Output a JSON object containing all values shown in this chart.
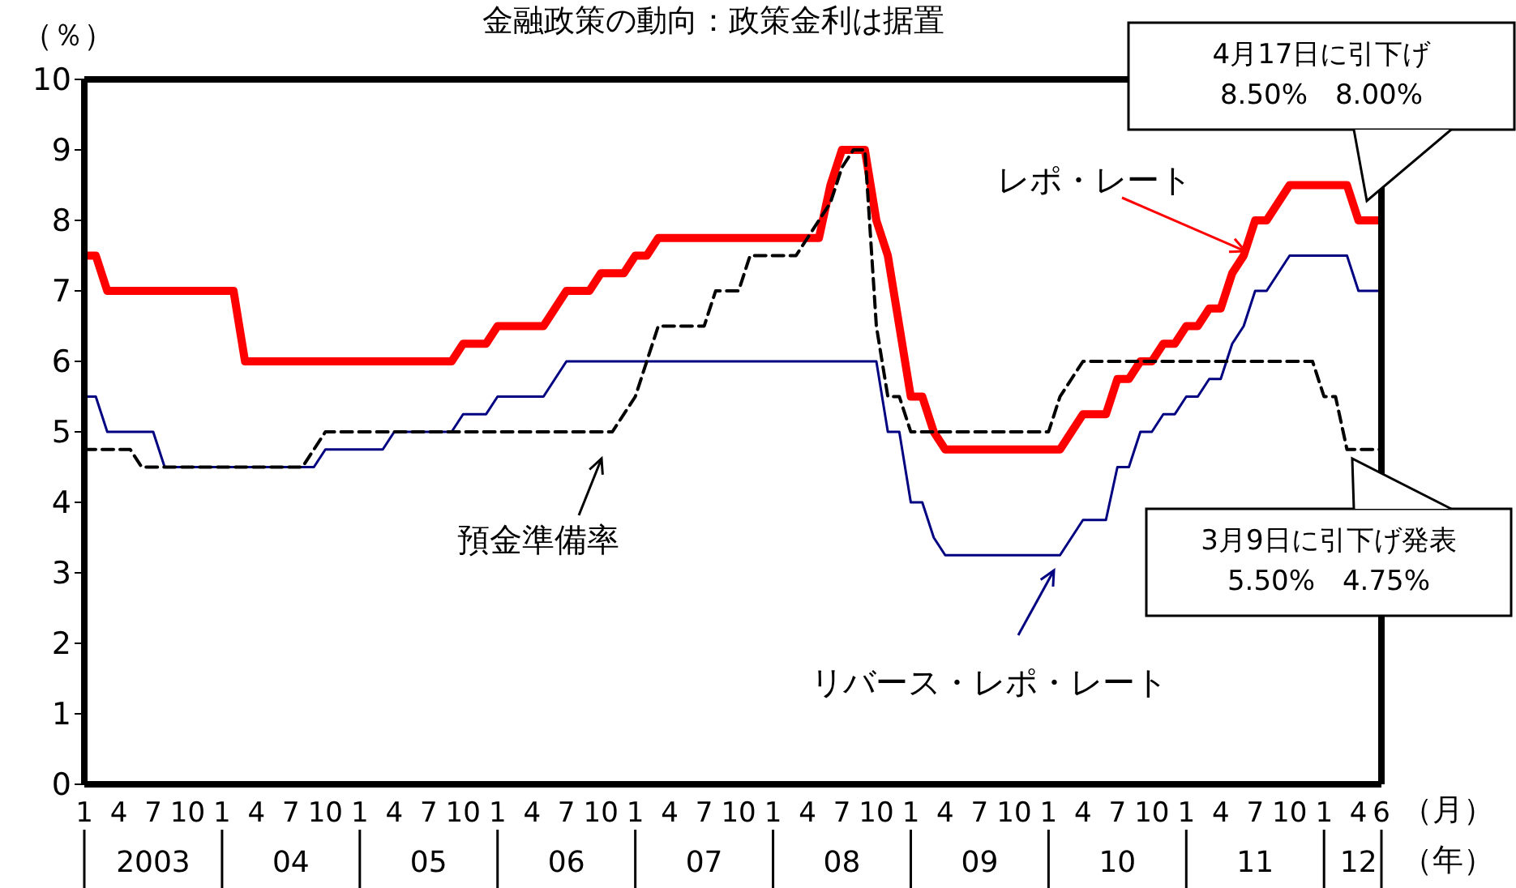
{
  "chart_data": {
    "type": "line",
    "title": "金融政策の動向：政策金利は据置",
    "ylabel": "（％）",
    "xlabel": "（月）",
    "x2label": "（年）",
    "x": [
      "2003-01",
      "2003-02",
      "2003-03",
      "2003-04",
      "2003-05",
      "2003-06",
      "2003-07",
      "2003-08",
      "2003-09",
      "2003-10",
      "2003-11",
      "2003-12",
      "2004-01",
      "2004-02",
      "2004-03",
      "2004-04",
      "2004-05",
      "2004-06",
      "2004-07",
      "2004-08",
      "2004-09",
      "2004-10",
      "2004-11",
      "2004-12",
      "2005-01",
      "2005-02",
      "2005-03",
      "2005-04",
      "2005-05",
      "2005-06",
      "2005-07",
      "2005-08",
      "2005-09",
      "2005-10",
      "2005-11",
      "2005-12",
      "2006-01",
      "2006-02",
      "2006-03",
      "2006-04",
      "2006-05",
      "2006-06",
      "2006-07",
      "2006-08",
      "2006-09",
      "2006-10",
      "2006-11",
      "2006-12",
      "2007-01",
      "2007-02",
      "2007-03",
      "2007-04",
      "2007-05",
      "2007-06",
      "2007-07",
      "2007-08",
      "2007-09",
      "2007-10",
      "2007-11",
      "2007-12",
      "2008-01",
      "2008-02",
      "2008-03",
      "2008-04",
      "2008-05",
      "2008-06",
      "2008-07",
      "2008-08",
      "2008-09",
      "2008-10",
      "2008-11",
      "2008-12",
      "2009-01",
      "2009-02",
      "2009-03",
      "2009-04",
      "2009-05",
      "2009-06",
      "2009-07",
      "2009-08",
      "2009-09",
      "2009-10",
      "2009-11",
      "2009-12",
      "2010-01",
      "2010-02",
      "2010-03",
      "2010-04",
      "2010-05",
      "2010-06",
      "2010-07",
      "2010-08",
      "2010-09",
      "2010-10",
      "2010-11",
      "2010-12",
      "2011-01",
      "2011-02",
      "2011-03",
      "2011-04",
      "2011-05",
      "2011-06",
      "2011-07",
      "2011-08",
      "2011-09",
      "2011-10",
      "2011-11",
      "2011-12",
      "2012-01",
      "2012-02",
      "2012-03",
      "2012-04",
      "2012-05",
      "2012-06"
    ],
    "series": [
      {
        "name": "レポ・レート",
        "color": "#ff0000",
        "line_style": "solid",
        "values": [
          7.5,
          7.5,
          7,
          7,
          7,
          7,
          7,
          7,
          7,
          7,
          7,
          7,
          7,
          7,
          6,
          6,
          6,
          6,
          6,
          6,
          6,
          6,
          6,
          6,
          6,
          6,
          6,
          6,
          6,
          6,
          6,
          6,
          6,
          6.25,
          6.25,
          6.25,
          6.5,
          6.5,
          6.5,
          6.5,
          6.5,
          6.75,
          7,
          7,
          7,
          7.25,
          7.25,
          7.25,
          7.5,
          7.5,
          7.75,
          7.75,
          7.75,
          7.75,
          7.75,
          7.75,
          7.75,
          7.75,
          7.75,
          7.75,
          7.75,
          7.75,
          7.75,
          7.75,
          7.75,
          8.5,
          9,
          9,
          9,
          8,
          7.5,
          6.5,
          5.5,
          5.5,
          5,
          4.75,
          4.75,
          4.75,
          4.75,
          4.75,
          4.75,
          4.75,
          4.75,
          4.75,
          4.75,
          4.75,
          5,
          5.25,
          5.25,
          5.25,
          5.75,
          5.75,
          6,
          6,
          6.25,
          6.25,
          6.5,
          6.5,
          6.75,
          6.75,
          7.25,
          7.5,
          8,
          8,
          8.25,
          8.5,
          8.5,
          8.5,
          8.5,
          8.5,
          8.5,
          8,
          8,
          8
        ]
      },
      {
        "name": "リバース・レポ・レート",
        "color": "#000080",
        "line_style": "solid",
        "values": [
          5.5,
          5.5,
          5,
          5,
          5,
          5,
          5,
          4.5,
          4.5,
          4.5,
          4.5,
          4.5,
          4.5,
          4.5,
          4.5,
          4.5,
          4.5,
          4.5,
          4.5,
          4.5,
          4.5,
          4.75,
          4.75,
          4.75,
          4.75,
          4.75,
          4.75,
          5,
          5,
          5,
          5,
          5,
          5,
          5.25,
          5.25,
          5.25,
          5.5,
          5.5,
          5.5,
          5.5,
          5.5,
          5.75,
          6,
          6,
          6,
          6,
          6,
          6,
          6,
          6,
          6,
          6,
          6,
          6,
          6,
          6,
          6,
          6,
          6,
          6,
          6,
          6,
          6,
          6,
          6,
          6,
          6,
          6,
          6,
          6,
          5,
          5,
          4,
          4,
          3.5,
          3.25,
          3.25,
          3.25,
          3.25,
          3.25,
          3.25,
          3.25,
          3.25,
          3.25,
          3.25,
          3.25,
          3.5,
          3.75,
          3.75,
          3.75,
          4.5,
          4.5,
          5,
          5,
          5.25,
          5.25,
          5.5,
          5.5,
          5.75,
          5.75,
          6.25,
          6.5,
          7,
          7,
          7.25,
          7.5,
          7.5,
          7.5,
          7.5,
          7.5,
          7.5,
          7,
          7,
          7
        ]
      },
      {
        "name": "預金準備率",
        "color": "#000000",
        "line_style": "dashed",
        "values": [
          4.75,
          4.75,
          4.75,
          4.75,
          4.75,
          4.5,
          4.5,
          4.5,
          4.5,
          4.5,
          4.5,
          4.5,
          4.5,
          4.5,
          4.5,
          4.5,
          4.5,
          4.5,
          4.5,
          4.5,
          4.75,
          5,
          5,
          5,
          5,
          5,
          5,
          5,
          5,
          5,
          5,
          5,
          5,
          5,
          5,
          5,
          5,
          5,
          5,
          5,
          5,
          5,
          5,
          5,
          5,
          5,
          5,
          5.25,
          5.5,
          6,
          6.5,
          6.5,
          6.5,
          6.5,
          6.5,
          7,
          7,
          7,
          7.5,
          7.5,
          7.5,
          7.5,
          7.5,
          7.75,
          8,
          8.25,
          8.75,
          9,
          9,
          6.5,
          5.5,
          5.5,
          5,
          5,
          5,
          5,
          5,
          5,
          5,
          5,
          5,
          5,
          5,
          5,
          5,
          5.5,
          5.75,
          6,
          6,
          6,
          6,
          6,
          6,
          6,
          6,
          6,
          6,
          6,
          6,
          6,
          6,
          6,
          6,
          6,
          6,
          6,
          6,
          6,
          5.5,
          5.5,
          4.75,
          4.75,
          4.75,
          4.75
        ]
      }
    ],
    "xlim": [
      "2003-01",
      "2012-06"
    ],
    "xticks": [
      {
        "value": "2003-01",
        "label": "1"
      },
      {
        "value": "2003-04",
        "label": "4"
      },
      {
        "value": "2003-07",
        "label": "7"
      },
      {
        "value": "2003-10",
        "label": "10"
      },
      {
        "value": "2004-01",
        "label": "1"
      },
      {
        "value": "2004-04",
        "label": "4"
      },
      {
        "value": "2004-07",
        "label": "7"
      },
      {
        "value": "2004-10",
        "label": "10"
      },
      {
        "value": "2005-01",
        "label": "1"
      },
      {
        "value": "2005-04",
        "label": "4"
      },
      {
        "value": "2005-07",
        "label": "7"
      },
      {
        "value": "2005-10",
        "label": "10"
      },
      {
        "value": "2006-01",
        "label": "1"
      },
      {
        "value": "2006-04",
        "label": "4"
      },
      {
        "value": "2006-07",
        "label": "7"
      },
      {
        "value": "2006-10",
        "label": "10"
      },
      {
        "value": "2007-01",
        "label": "1"
      },
      {
        "value": "2007-04",
        "label": "4"
      },
      {
        "value": "2007-07",
        "label": "7"
      },
      {
        "value": "2007-10",
        "label": "10"
      },
      {
        "value": "2008-01",
        "label": "1"
      },
      {
        "value": "2008-04",
        "label": "4"
      },
      {
        "value": "2008-07",
        "label": "7"
      },
      {
        "value": "2008-10",
        "label": "10"
      },
      {
        "value": "2009-01",
        "label": "1"
      },
      {
        "value": "2009-04",
        "label": "4"
      },
      {
        "value": "2009-07",
        "label": "7"
      },
      {
        "value": "2009-10",
        "label": "10"
      },
      {
        "value": "2010-01",
        "label": "1"
      },
      {
        "value": "2010-04",
        "label": "4"
      },
      {
        "value": "2010-07",
        "label": "7"
      },
      {
        "value": "2010-10",
        "label": "10"
      },
      {
        "value": "2011-01",
        "label": "1"
      },
      {
        "value": "2011-04",
        "label": "4"
      },
      {
        "value": "2011-07",
        "label": "7"
      },
      {
        "value": "2011-10",
        "label": "10"
      },
      {
        "value": "2012-01",
        "label": "1"
      },
      {
        "value": "2012-04",
        "label": "4"
      },
      {
        "value": "2012-06",
        "label": "6"
      }
    ],
    "x2lim": [
      "2003-01",
      "2012-06"
    ],
    "x2ticks": [
      {
        "value": "2003-07",
        "label": "2003"
      },
      {
        "value": "2004-07",
        "label": "04"
      },
      {
        "value": "2005-07",
        "label": "05"
      },
      {
        "value": "2006-07",
        "label": "06"
      },
      {
        "value": "2007-07",
        "label": "07"
      },
      {
        "value": "2008-07",
        "label": "08"
      },
      {
        "value": "2009-07",
        "label": "09"
      },
      {
        "value": "2010-07",
        "label": "10"
      },
      {
        "value": "2011-07",
        "label": "11"
      },
      {
        "value": "2012-04",
        "label": "12"
      }
    ],
    "ylim": [
      0,
      10
    ],
    "yticks": [
      0,
      1,
      2,
      3,
      4,
      5,
      6,
      7,
      8,
      9,
      10
    ],
    "grid": false,
    "legend": "bottom",
    "marker": "none",
    "annotations": [
      "4月17日に引下げ\n8.50%　8.00%",
      "3月9日に引下げ発表\n5.50%　4.75%"
    ]
  }
}
